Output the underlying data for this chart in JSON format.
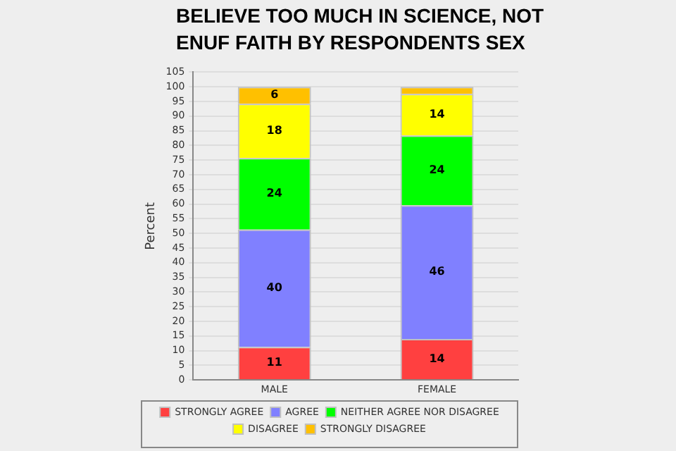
{
  "chart_data": {
    "type": "bar",
    "title": "BELIEVE TOO MUCH IN SCIENCE, NOT ENUF FAITH BY RESPONDENTS SEX",
    "ylabel": "Percent",
    "categories": [
      "MALE",
      "FEMALE"
    ],
    "stacked": true,
    "series": [
      {
        "name": "STRONGLY AGREE",
        "color": "#ff4040",
        "values": [
          11.3,
          14
        ],
        "value_labels": [
          "11",
          "14"
        ]
      },
      {
        "name": "AGREE",
        "color": "#8080ff",
        "values": [
          40,
          45.6
        ],
        "value_labels": [
          "40",
          "46"
        ]
      },
      {
        "name": "NEITHER AGREE NOR DISAGREE",
        "color": "#00ff00",
        "values": [
          24.4,
          23.8
        ],
        "value_labels": [
          "24",
          "24"
        ]
      },
      {
        "name": "DISAGREE",
        "color": "#ffff00",
        "values": [
          18.5,
          14.2
        ],
        "value_labels": [
          "18",
          "14"
        ]
      },
      {
        "name": "STRONGLY DISAGREE",
        "color": "#ffc000",
        "values": [
          5.8,
          2.4
        ],
        "value_labels": [
          "6",
          null
        ]
      }
    ],
    "ylim": [
      0,
      105
    ],
    "yticks": [
      0,
      5,
      10,
      15,
      20,
      25,
      30,
      35,
      40,
      45,
      50,
      55,
      60,
      65,
      70,
      75,
      80,
      85,
      90,
      95,
      100,
      105
    ],
    "grid": "y",
    "legend": "bottom"
  }
}
